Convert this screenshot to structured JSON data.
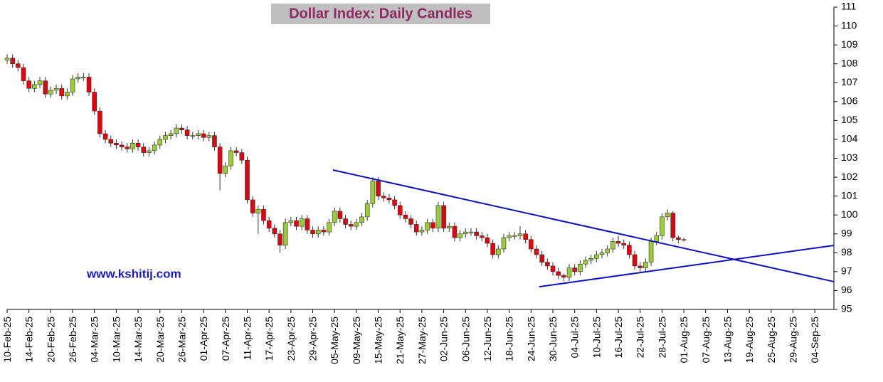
{
  "chart_data": {
    "type": "candlestick",
    "title": "Dollar Index: Daily Candles",
    "annotation": "www.kshitij.com",
    "categories": [
      "10-Feb-25",
      null,
      null,
      null,
      "14-Feb-25",
      null,
      null,
      null,
      "20-Feb-25",
      null,
      null,
      null,
      "26-Feb-25",
      null,
      null,
      null,
      "04-Mar-25",
      null,
      null,
      null,
      "10-Mar-25",
      null,
      null,
      null,
      "14-Mar-25",
      null,
      null,
      null,
      "20-Mar-25",
      null,
      null,
      null,
      "26-Mar-25",
      null,
      null,
      null,
      "01-Apr-25",
      null,
      null,
      null,
      "07-Apr-25",
      null,
      null,
      null,
      "11-Apr-25",
      null,
      null,
      null,
      "17-Apr-25",
      null,
      null,
      null,
      "23-Apr-25",
      null,
      null,
      null,
      "29-Apr-25",
      null,
      null,
      null,
      "05-May-25",
      null,
      null,
      null,
      "09-May-25",
      null,
      null,
      null,
      "15-May-25",
      null,
      null,
      null,
      "21-May-25",
      null,
      null,
      null,
      "27-May-25",
      null,
      null,
      null,
      "02-Jun-25",
      null,
      null,
      null,
      "06-Jun-25",
      null,
      null,
      null,
      "12-Jun-25",
      null,
      null,
      null,
      "18-Jun-25",
      null,
      null,
      null,
      "24-Jun-25",
      null,
      null,
      null,
      "30-Jun-25",
      null,
      null,
      null,
      "04-Jul-25",
      null,
      null,
      null,
      "10-Jul-25",
      null,
      null,
      null,
      "16-Jul-25",
      null,
      null,
      null,
      "22-Jul-25",
      null,
      null,
      null,
      "28-Jul-25",
      null,
      null,
      null,
      "01-Aug-25",
      null,
      null,
      null,
      "07-Aug-25",
      null,
      null,
      null,
      "13-Aug-25",
      null,
      null,
      null,
      "19-Aug-25",
      null,
      null,
      null,
      "25-Aug-25",
      null,
      null,
      null,
      "29-Aug-25",
      null,
      null,
      null,
      "04-Sep-25",
      null,
      null,
      null
    ],
    "open": [
      108.2,
      108.3,
      108.0,
      107.8,
      107.1,
      106.7,
      106.9,
      107.1,
      106.4,
      106.6,
      106.7,
      106.3,
      106.5,
      107.2,
      107.3,
      107.3,
      106.5,
      105.5,
      104.3,
      104.0,
      103.8,
      103.7,
      103.6,
      103.5,
      103.8,
      103.6,
      103.3,
      103.4,
      103.7,
      104.0,
      104.2,
      104.3,
      104.6,
      104.5,
      104.2,
      104.2,
      104.3,
      104.1,
      104.2,
      103.6,
      102.2,
      102.6,
      103.4,
      103.3,
      102.9,
      100.8,
      100.1,
      100.3,
      99.7,
      99.3,
      99.0,
      98.4,
      99.6,
      99.7,
      99.4,
      99.8,
      99.2,
      99.0,
      99.2,
      99.1,
      99.6,
      100.2,
      99.8,
      99.5,
      99.4,
      99.6,
      99.9,
      100.6,
      101.8,
      101.0,
      100.9,
      100.8,
      100.5,
      100.0,
      99.8,
      99.5,
      99.1,
      99.2,
      99.6,
      99.3,
      100.5,
      99.3,
      99.4,
      98.8,
      99.0,
      99.1,
      99.1,
      98.9,
      98.8,
      98.5,
      97.9,
      98.2,
      98.8,
      98.9,
      98.9,
      99.0,
      98.7,
      98.2,
      97.9,
      97.5,
      97.3,
      97.0,
      96.8,
      96.7,
      97.2,
      97.0,
      97.4,
      97.6,
      97.7,
      97.9,
      98.0,
      98.2,
      98.6,
      98.5,
      98.4,
      97.9,
      97.3,
      97.2,
      97.5,
      98.6,
      98.9,
      99.9,
      100.1,
      98.8,
      98.7,
      null,
      null,
      null,
      null,
      null,
      null,
      null,
      null,
      null,
      null,
      null,
      null,
      null,
      null,
      null,
      null,
      null,
      null,
      null,
      null,
      null,
      null,
      null,
      null,
      null,
      null,
      null
    ],
    "high": [
      108.5,
      108.5,
      108.2,
      108.0,
      107.3,
      107.1,
      107.3,
      107.3,
      106.8,
      106.9,
      106.9,
      106.7,
      107.4,
      107.5,
      107.5,
      107.5,
      106.7,
      105.7,
      104.5,
      104.2,
      104.0,
      103.9,
      103.8,
      104.0,
      104.0,
      103.8,
      103.6,
      103.9,
      104.2,
      104.4,
      104.5,
      104.8,
      104.8,
      104.7,
      104.4,
      104.5,
      104.5,
      104.4,
      104.4,
      103.8,
      102.8,
      103.6,
      103.6,
      103.5,
      103.1,
      101.0,
      100.5,
      100.5,
      99.9,
      99.5,
      99.2,
      99.8,
      99.9,
      99.9,
      100.0,
      100.0,
      99.4,
      99.4,
      99.4,
      99.8,
      100.4,
      100.4,
      100.0,
      99.7,
      99.8,
      100.1,
      100.8,
      102.0,
      102.0,
      101.2,
      101.1,
      101.0,
      100.7,
      100.2,
      100.0,
      99.7,
      99.4,
      99.8,
      99.8,
      100.7,
      100.7,
      99.6,
      99.6,
      99.2,
      99.3,
      99.3,
      99.3,
      99.1,
      99.0,
      98.7,
      98.4,
      99.0,
      99.1,
      99.1,
      99.4,
      99.2,
      98.9,
      98.4,
      98.1,
      97.7,
      97.5,
      97.2,
      96.9,
      97.4,
      97.4,
      97.6,
      97.8,
      97.9,
      98.1,
      98.2,
      98.4,
      98.8,
      98.9,
      98.7,
      98.6,
      98.1,
      97.5,
      97.7,
      98.8,
      99.1,
      100.1,
      100.3,
      100.2,
      98.9,
      98.8,
      null,
      null,
      null,
      null,
      null,
      null,
      null,
      null,
      null,
      null,
      null,
      null,
      null,
      null,
      null,
      null,
      null,
      null,
      null,
      null,
      null,
      null,
      null,
      null,
      null,
      null,
      null
    ],
    "low": [
      108.0,
      107.8,
      107.6,
      106.9,
      106.5,
      106.5,
      106.7,
      106.2,
      106.2,
      106.4,
      106.1,
      106.1,
      106.3,
      107.0,
      107.1,
      106.3,
      105.3,
      104.1,
      103.8,
      103.6,
      103.5,
      103.4,
      103.3,
      103.3,
      103.4,
      103.1,
      103.1,
      103.2,
      103.5,
      103.8,
      104.0,
      104.1,
      104.3,
      104.0,
      104.0,
      104.0,
      103.9,
      103.9,
      103.4,
      101.3,
      102.0,
      102.4,
      103.1,
      102.7,
      100.6,
      99.9,
      99.0,
      99.5,
      99.1,
      98.8,
      98.0,
      98.2,
      99.4,
      99.2,
      99.2,
      99.0,
      98.8,
      98.8,
      98.9,
      98.9,
      99.4,
      99.6,
      99.3,
      99.2,
      99.2,
      99.4,
      99.7,
      100.4,
      100.8,
      100.7,
      100.6,
      100.3,
      99.8,
      99.6,
      99.3,
      98.9,
      98.9,
      99.0,
      99.1,
      99.1,
      99.1,
      99.1,
      98.6,
      98.6,
      98.8,
      98.9,
      98.7,
      98.6,
      98.3,
      97.7,
      97.7,
      98.0,
      98.6,
      98.7,
      98.7,
      98.5,
      98.0,
      97.7,
      97.3,
      97.1,
      96.8,
      96.6,
      96.5,
      96.5,
      96.8,
      96.8,
      97.2,
      97.4,
      97.5,
      97.7,
      97.8,
      98.0,
      98.3,
      98.2,
      97.7,
      97.1,
      97.0,
      97.0,
      97.3,
      98.4,
      98.7,
      99.7,
      98.6,
      98.5,
      98.6,
      null,
      null,
      null,
      null,
      null,
      null,
      null,
      null,
      null,
      null,
      null,
      null,
      null,
      null,
      null,
      null,
      null,
      null,
      null,
      null,
      null,
      null,
      null,
      null,
      null,
      null,
      null
    ],
    "close": [
      108.3,
      108.0,
      107.8,
      107.1,
      106.7,
      106.9,
      107.1,
      106.4,
      106.6,
      106.7,
      106.3,
      106.5,
      107.2,
      107.3,
      107.3,
      106.5,
      105.5,
      104.3,
      104.0,
      103.8,
      103.7,
      103.6,
      103.5,
      103.8,
      103.6,
      103.3,
      103.4,
      103.7,
      104.0,
      104.2,
      104.3,
      104.6,
      104.5,
      104.2,
      104.2,
      104.3,
      104.1,
      104.2,
      103.6,
      102.2,
      102.6,
      103.4,
      103.3,
      102.9,
      100.8,
      100.1,
      100.3,
      99.7,
      99.3,
      99.0,
      98.4,
      99.6,
      99.7,
      99.4,
      99.8,
      99.2,
      99.0,
      99.2,
      99.1,
      99.6,
      100.2,
      99.8,
      99.5,
      99.4,
      99.6,
      99.9,
      100.6,
      101.8,
      101.0,
      100.9,
      100.8,
      100.5,
      100.0,
      99.8,
      99.5,
      99.1,
      99.2,
      99.6,
      99.3,
      100.5,
      99.3,
      99.4,
      98.8,
      99.0,
      99.1,
      99.1,
      98.9,
      98.8,
      98.5,
      97.9,
      98.2,
      98.8,
      98.9,
      98.9,
      99.0,
      98.7,
      98.2,
      97.9,
      97.5,
      97.3,
      97.0,
      96.8,
      96.7,
      97.2,
      97.0,
      97.4,
      97.6,
      97.7,
      97.9,
      98.0,
      98.2,
      98.6,
      98.5,
      98.4,
      97.9,
      97.3,
      97.2,
      97.5,
      98.6,
      98.9,
      99.9,
      100.1,
      98.8,
      98.7,
      98.7,
      null,
      null,
      null,
      null,
      null,
      null,
      null,
      null,
      null,
      null,
      null,
      null,
      null,
      null,
      null,
      null,
      null,
      null,
      null,
      null,
      null,
      null,
      null,
      null,
      null,
      null,
      null
    ],
    "up_color": "#9acd32",
    "down_color": "#e8000b",
    "trendlines": [
      {
        "color": "#1010c0",
        "x": [
          59.7,
          151.5
        ],
        "y": [
          102.38,
          96.47
        ]
      },
      {
        "color": "#1010c0",
        "x": [
          97.5,
          151.5
        ],
        "y": [
          96.2,
          98.39
        ]
      }
    ],
    "ylim": [
      95,
      111
    ],
    "yticks": [
      95,
      96,
      97,
      98,
      99,
      100,
      101,
      102,
      103,
      104,
      105,
      106,
      107,
      108,
      109,
      110,
      111
    ],
    "grid": false
  }
}
